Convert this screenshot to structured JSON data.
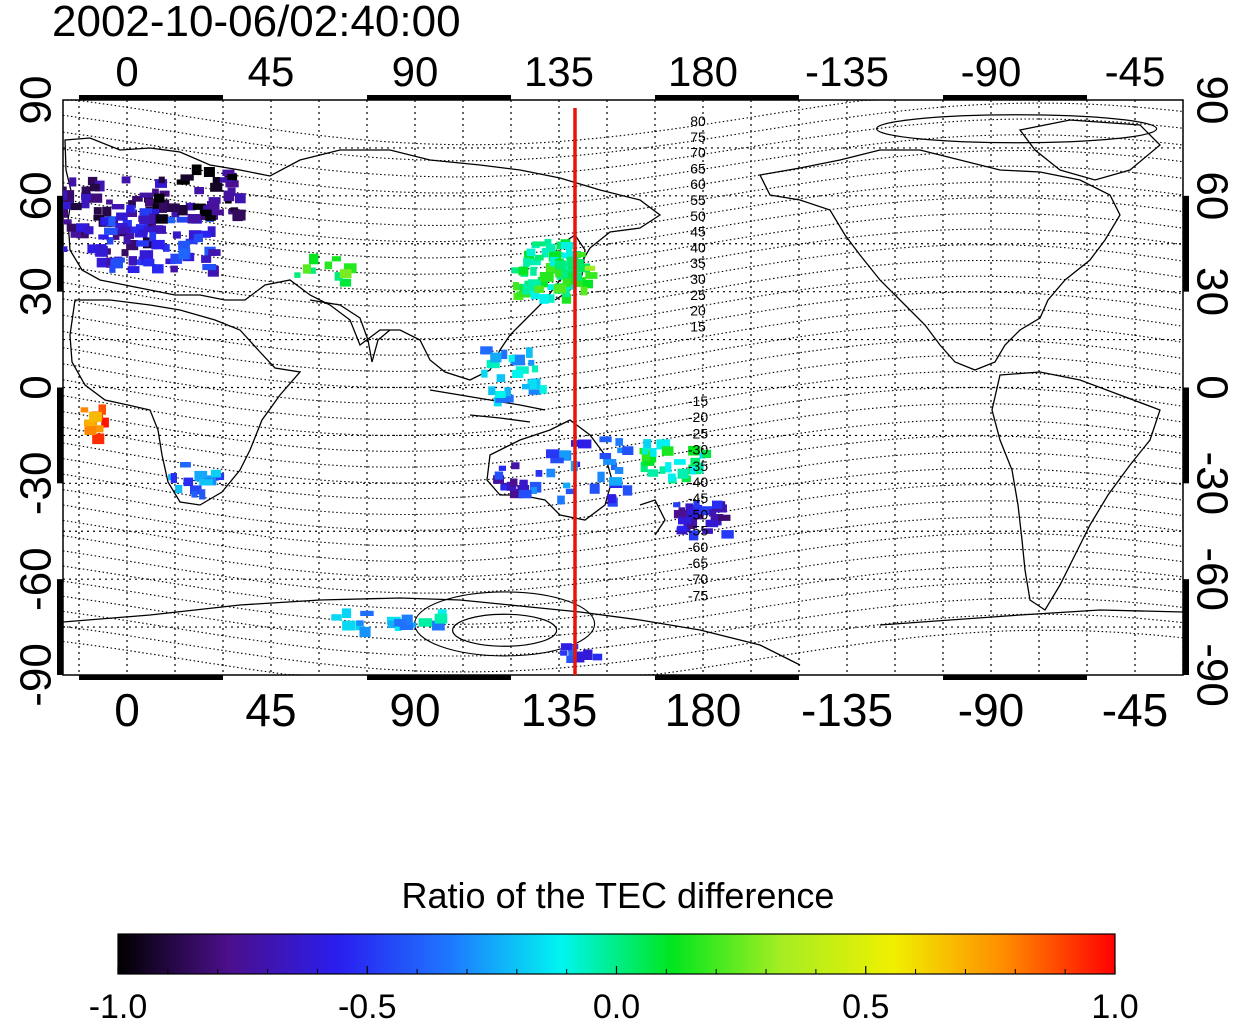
{
  "title": "2002-10-06/02:40:00",
  "map": {
    "bottom_lon_labels": [
      "0",
      "45",
      "90",
      "135",
      "180",
      "-135",
      "-90",
      "-45"
    ],
    "top_lon_labels": [
      "0",
      "45",
      "90",
      "135",
      "180",
      "-135",
      "-90",
      "-45"
    ],
    "left_lat_labels": [
      "90",
      "60",
      "30",
      "0",
      "-30",
      "-60",
      "-90"
    ],
    "right_lat_labels": [
      "90",
      "60",
      "30",
      "0",
      "-30",
      "-60",
      "-90"
    ],
    "north_contour_labels": [
      "80",
      "75",
      "70",
      "65",
      "60",
      "55",
      "50",
      "45",
      "40",
      "35",
      "30",
      "25",
      "20",
      "15"
    ],
    "south_contour_labels": [
      "-15",
      "-20",
      "-25",
      "-30",
      "-35",
      "-40",
      "-45",
      "-50",
      "-55",
      "-60",
      "-65",
      "-70",
      "-75"
    ],
    "meridian_marker_lon": 140,
    "meridian_marker_color": "#e8140c",
    "lon_range": [
      -20,
      330
    ],
    "lat_range": [
      -90,
      90
    ]
  },
  "colorbar": {
    "title": "Ratio of the TEC difference",
    "tick_labels": [
      "-1.0",
      "-0.5",
      "0.0",
      "0.5",
      "1.0"
    ],
    "range": [
      -1.0,
      1.0
    ],
    "colors": [
      "#000000",
      "#4b0f8c",
      "#2a1ef0",
      "#1e78ff",
      "#00f5f0",
      "#00e61e",
      "#a6ee22",
      "#f0f000",
      "#ff8c00",
      "#ff0000"
    ]
  }
}
